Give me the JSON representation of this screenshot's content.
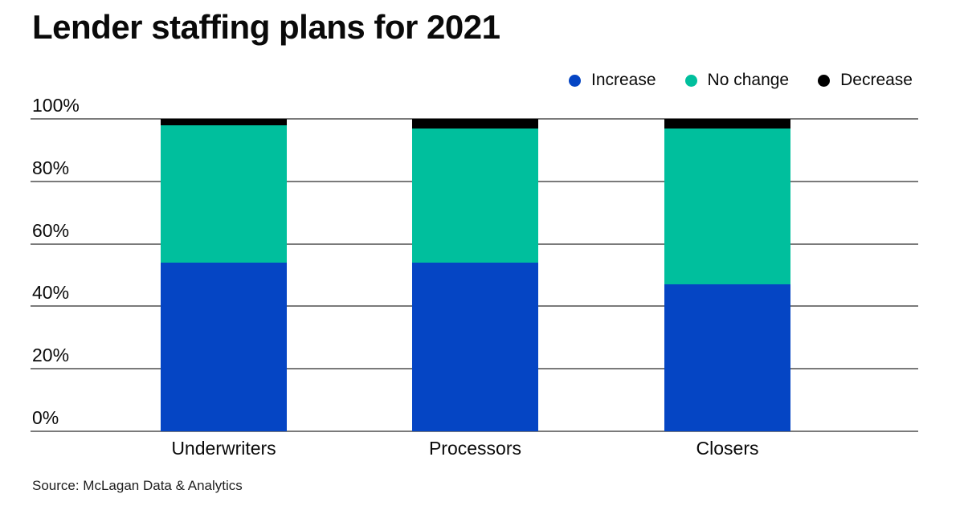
{
  "chart": {
    "title": "Lender staffing plans for 2021",
    "source": "Source: McLagan Data & Analytics"
  },
  "chart_data": {
    "type": "bar",
    "stacked": true,
    "title": "Lender staffing plans for 2021",
    "categories": [
      "Underwriters",
      "Processors",
      "Closers"
    ],
    "series": [
      {
        "name": "Increase",
        "color": "#0545c4",
        "values": [
          54,
          54,
          47
        ]
      },
      {
        "name": "No change",
        "color": "#00bf9d",
        "values": [
          44,
          43,
          50
        ]
      },
      {
        "name": "Decrease",
        "color": "#000000",
        "values": [
          2,
          3,
          3
        ]
      }
    ],
    "y_axis": {
      "min": 0,
      "max": 100,
      "ticks": [
        {
          "label": "0%",
          "value": 0
        },
        {
          "label": "20%",
          "value": 20
        },
        {
          "label": "40%",
          "value": 40
        },
        {
          "label": "60%",
          "value": 60
        },
        {
          "label": "80%",
          "value": 80
        },
        {
          "label": "100%",
          "value": 100
        }
      ]
    },
    "grid": true,
    "legend_position": "top-right",
    "colors": {
      "accent_blue": "#0545c4",
      "accent_teal": "#00bf9d",
      "accent_black": "#000000",
      "gridline_gray": "#7a7a7a"
    }
  }
}
